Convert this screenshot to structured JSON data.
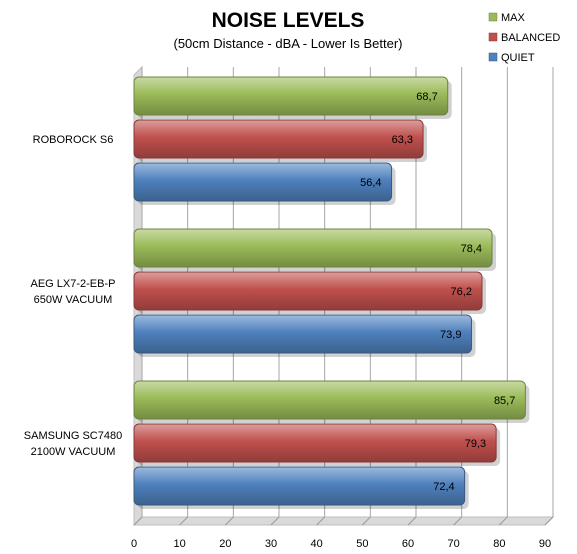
{
  "chart_data": {
    "type": "bar",
    "orientation": "horizontal",
    "title": "NOISE LEVELS",
    "subtitle": "(50cm Distance - dBA - Lower Is Better)",
    "categories": [
      "ROBOROCK S6",
      "AEG LX7-2-EB-P\n650W VACUUM",
      "SAMSUNG SC7480\n2100W VACUUM"
    ],
    "series": [
      {
        "name": "MAX",
        "color": "#9bbb59",
        "values": [
          68.7,
          78.4,
          85.7
        ],
        "labels": [
          "68,7",
          "78,4",
          "85,7"
        ]
      },
      {
        "name": "BALANCED",
        "color": "#c0504d",
        "values": [
          63.3,
          76.2,
          79.3
        ],
        "labels": [
          "63,3",
          "76,2",
          "79,3"
        ]
      },
      {
        "name": "QUIET",
        "color": "#4f81bd",
        "values": [
          56.4,
          73.9,
          72.4
        ],
        "labels": [
          "56,4",
          "73,9",
          "72,4"
        ]
      }
    ],
    "xlim": [
      0,
      90
    ],
    "ticks": [
      0,
      10,
      20,
      30,
      40,
      50,
      60,
      70,
      80,
      90
    ],
    "grid": true,
    "legend_position": "top-right"
  }
}
